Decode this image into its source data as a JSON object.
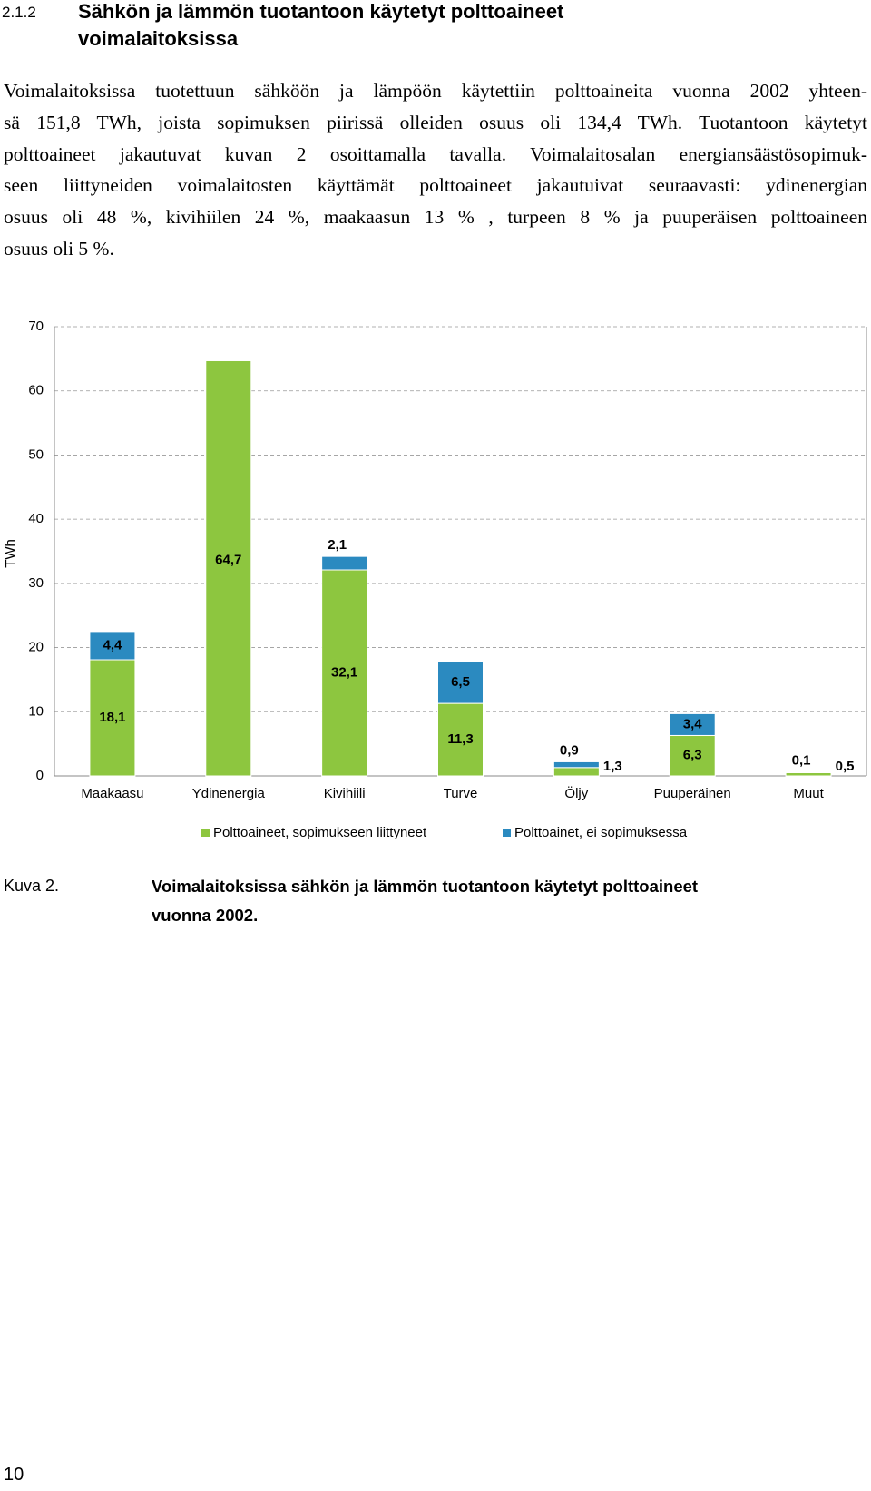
{
  "section": {
    "number": "2.1.2",
    "title_lines": [
      "Sähkön ja lämmön tuotantoon käytetyt polttoaineet",
      "voimalaitoksissa"
    ]
  },
  "paragraph_lines": [
    "Voimalaitoksissa tuotettuun sähköön ja lämpöön käytettiin polttoaineita vuonna 2002 yhteen-",
    "sä 151,8 TWh, joista sopimuksen piirissä olleiden osuus oli 134,4 TWh. Tuotantoon käytetyt",
    "polttoaineet jakautuvat kuvan 2 osoittamalla tavalla. Voimalaitosalan energiansäästösopimuk-",
    "seen liittyneiden voimalaitosten käyttämät polttoaineet jakautuivat seuraavasti: ydinenergian",
    "osuus oli 48 %, kivihiilen 24 %, maakaasun 13 % , turpeen 8 % ja puuperäisen polttoaineen",
    "osuus oli 5 %."
  ],
  "chart_data": {
    "type": "stacked_bar",
    "y_label": "TWh",
    "categories": [
      "Maakaasu",
      "Ydinenergia",
      "Kivihiili",
      "Turve",
      "Öljy",
      "Puuperäinen",
      "Muut"
    ],
    "series": [
      {
        "name": "Polttoaineet, sopimukseen liittyneet",
        "color": "#8dc63f",
        "values": [
          18.1,
          64.7,
          32.1,
          11.3,
          1.3,
          6.3,
          0.5
        ],
        "value_labels": [
          "18,1",
          "64,7",
          "32,1",
          "11,3",
          "1,3",
          "6,3",
          "0,5"
        ]
      },
      {
        "name": "Polttoainet, ei sopimuksessa",
        "color": "#2b8ac0",
        "values": [
          4.4,
          null,
          2.1,
          6.5,
          0.9,
          3.4,
          0.1
        ],
        "value_labels": [
          "4,4",
          null,
          "2,1",
          "6,5",
          "0,9",
          "3,4",
          "0,1"
        ]
      }
    ],
    "ylim": [
      0,
      70
    ],
    "yticks": [
      0,
      10,
      20,
      30,
      40,
      50,
      60,
      70
    ],
    "grid": true
  },
  "caption": {
    "label": "Kuva 2.",
    "text_lines": [
      "Voimalaitoksissa sähkön ja lämmön tuotantoon käytetyt polttoaineet",
      "vuonna 2002."
    ]
  },
  "page_number": "10"
}
